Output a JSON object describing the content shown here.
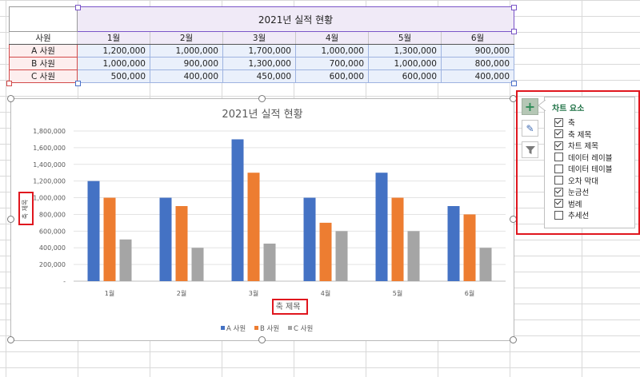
{
  "sheet": {
    "title": "2021년 실적 현황",
    "name_header": "사원",
    "months": [
      "1월",
      "2월",
      "3월",
      "4월",
      "5월",
      "6월"
    ],
    "rows": [
      {
        "name": "A 사원",
        "values": [
          "1,200,000",
          "1,000,000",
          "1,700,000",
          "1,000,000",
          "1,300,000",
          "900,000"
        ]
      },
      {
        "name": "B 사원",
        "values": [
          "1,000,000",
          "900,000",
          "1,300,000",
          "700,000",
          "1,000,000",
          "800,000"
        ]
      },
      {
        "name": "C 사원",
        "values": [
          "500,000",
          "400,000",
          "450,000",
          "600,000",
          "600,000",
          "400,000"
        ]
      }
    ]
  },
  "chart_data": {
    "type": "bar",
    "title": "2021년 실적 현황",
    "categories": [
      "1월",
      "2월",
      "3월",
      "4월",
      "5월",
      "6월"
    ],
    "series": [
      {
        "name": "A 사원",
        "color": "#4472c4",
        "values": [
          1200000,
          1000000,
          1700000,
          1000000,
          1300000,
          900000
        ]
      },
      {
        "name": "B 사원",
        "color": "#ed7d31",
        "values": [
          1000000,
          900000,
          1300000,
          700000,
          1000000,
          800000
        ]
      },
      {
        "name": "C 사원",
        "color": "#a5a5a5",
        "values": [
          500000,
          400000,
          450000,
          600000,
          600000,
          400000
        ]
      }
    ],
    "ylim": [
      0,
      1800000
    ],
    "yticks": [
      "-",
      "200,000",
      "400,000",
      "600,000",
      "800,000",
      "1,000,000",
      "1,200,000",
      "1,400,000",
      "1,600,000",
      "1,800,000"
    ],
    "xlabel": "축 제목",
    "ylabel": "축 제목",
    "legend_position": "bottom"
  },
  "panel": {
    "title": "차트 요소",
    "options": [
      {
        "label": "축",
        "checked": true
      },
      {
        "label": "축 제목",
        "checked": true
      },
      {
        "label": "차트 제목",
        "checked": true
      },
      {
        "label": "데이터 레이블",
        "checked": false
      },
      {
        "label": "데이터 테이블",
        "checked": false
      },
      {
        "label": "오차 막대",
        "checked": false
      },
      {
        "label": "눈금선",
        "checked": true
      },
      {
        "label": "범례",
        "checked": true
      },
      {
        "label": "추세선",
        "checked": false
      }
    ]
  },
  "side_buttons": [
    {
      "icon": "plus-icon",
      "symbol": "+"
    },
    {
      "icon": "brush-icon",
      "symbol": "✎"
    },
    {
      "icon": "filter-icon",
      "symbol": "▼"
    }
  ]
}
